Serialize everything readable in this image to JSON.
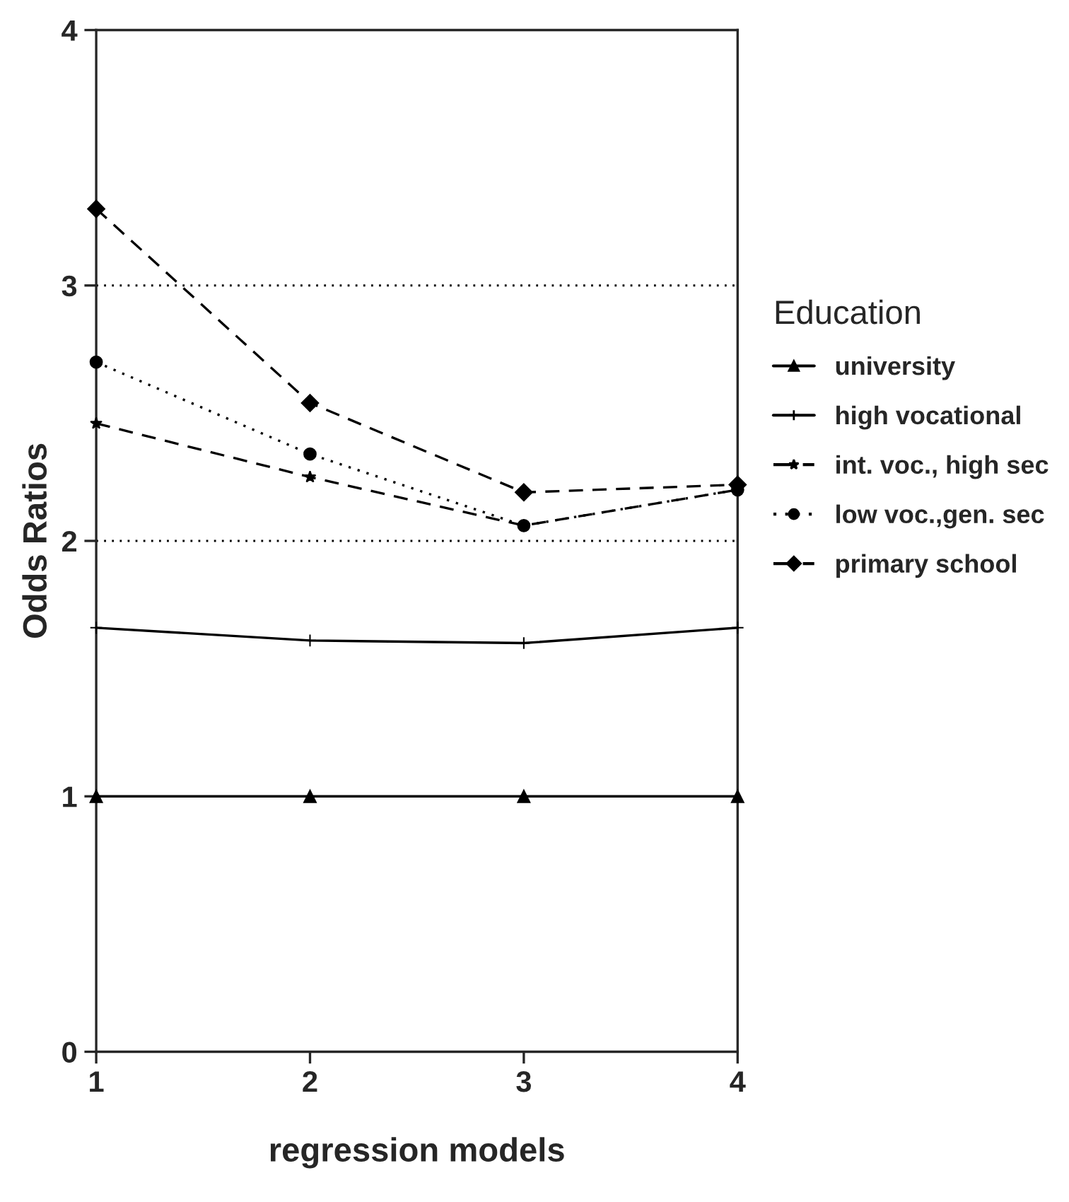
{
  "chart_data": {
    "type": "line",
    "xlabel": "regression models",
    "ylabel": "Odds Ratios",
    "legend_title": "Education",
    "legend": "right",
    "x": [
      1,
      2,
      3,
      4
    ],
    "xlim": [
      1,
      4
    ],
    "xticks": [
      1,
      2,
      3,
      4
    ],
    "ylim": [
      0,
      4
    ],
    "yticks": [
      0,
      1,
      2,
      3,
      4
    ],
    "series": [
      {
        "name": "university",
        "color": "#000000",
        "values": [
          1.0,
          1.0,
          1.0,
          1.0
        ],
        "marker": "triangle",
        "line_style": "solid"
      },
      {
        "name": "high vocational",
        "color": "#000000",
        "values": [
          1.66,
          1.61,
          1.6,
          1.66
        ],
        "marker": "cross",
        "line_style": "solid"
      },
      {
        "name": "int. voc., high sec",
        "color": "#000000",
        "values": [
          2.46,
          2.25,
          2.06,
          2.2
        ],
        "marker": "star",
        "line_style": "dashed"
      },
      {
        "name": "low voc.,gen. sec",
        "color": "#000000",
        "values": [
          2.7,
          2.34,
          2.06,
          2.2
        ],
        "marker": "circle",
        "line_style": "dotted"
      },
      {
        "name": "primary school",
        "color": "#000000",
        "values": [
          3.3,
          2.54,
          2.19,
          2.22
        ],
        "marker": "diamond",
        "line_style": "dashed"
      }
    ],
    "ref_lines": [
      {
        "axis": "y",
        "value": 2,
        "line_style": "dotted",
        "color": "#000000"
      },
      {
        "axis": "y",
        "value": 3,
        "line_style": "dotted",
        "color": "#000000"
      }
    ]
  }
}
